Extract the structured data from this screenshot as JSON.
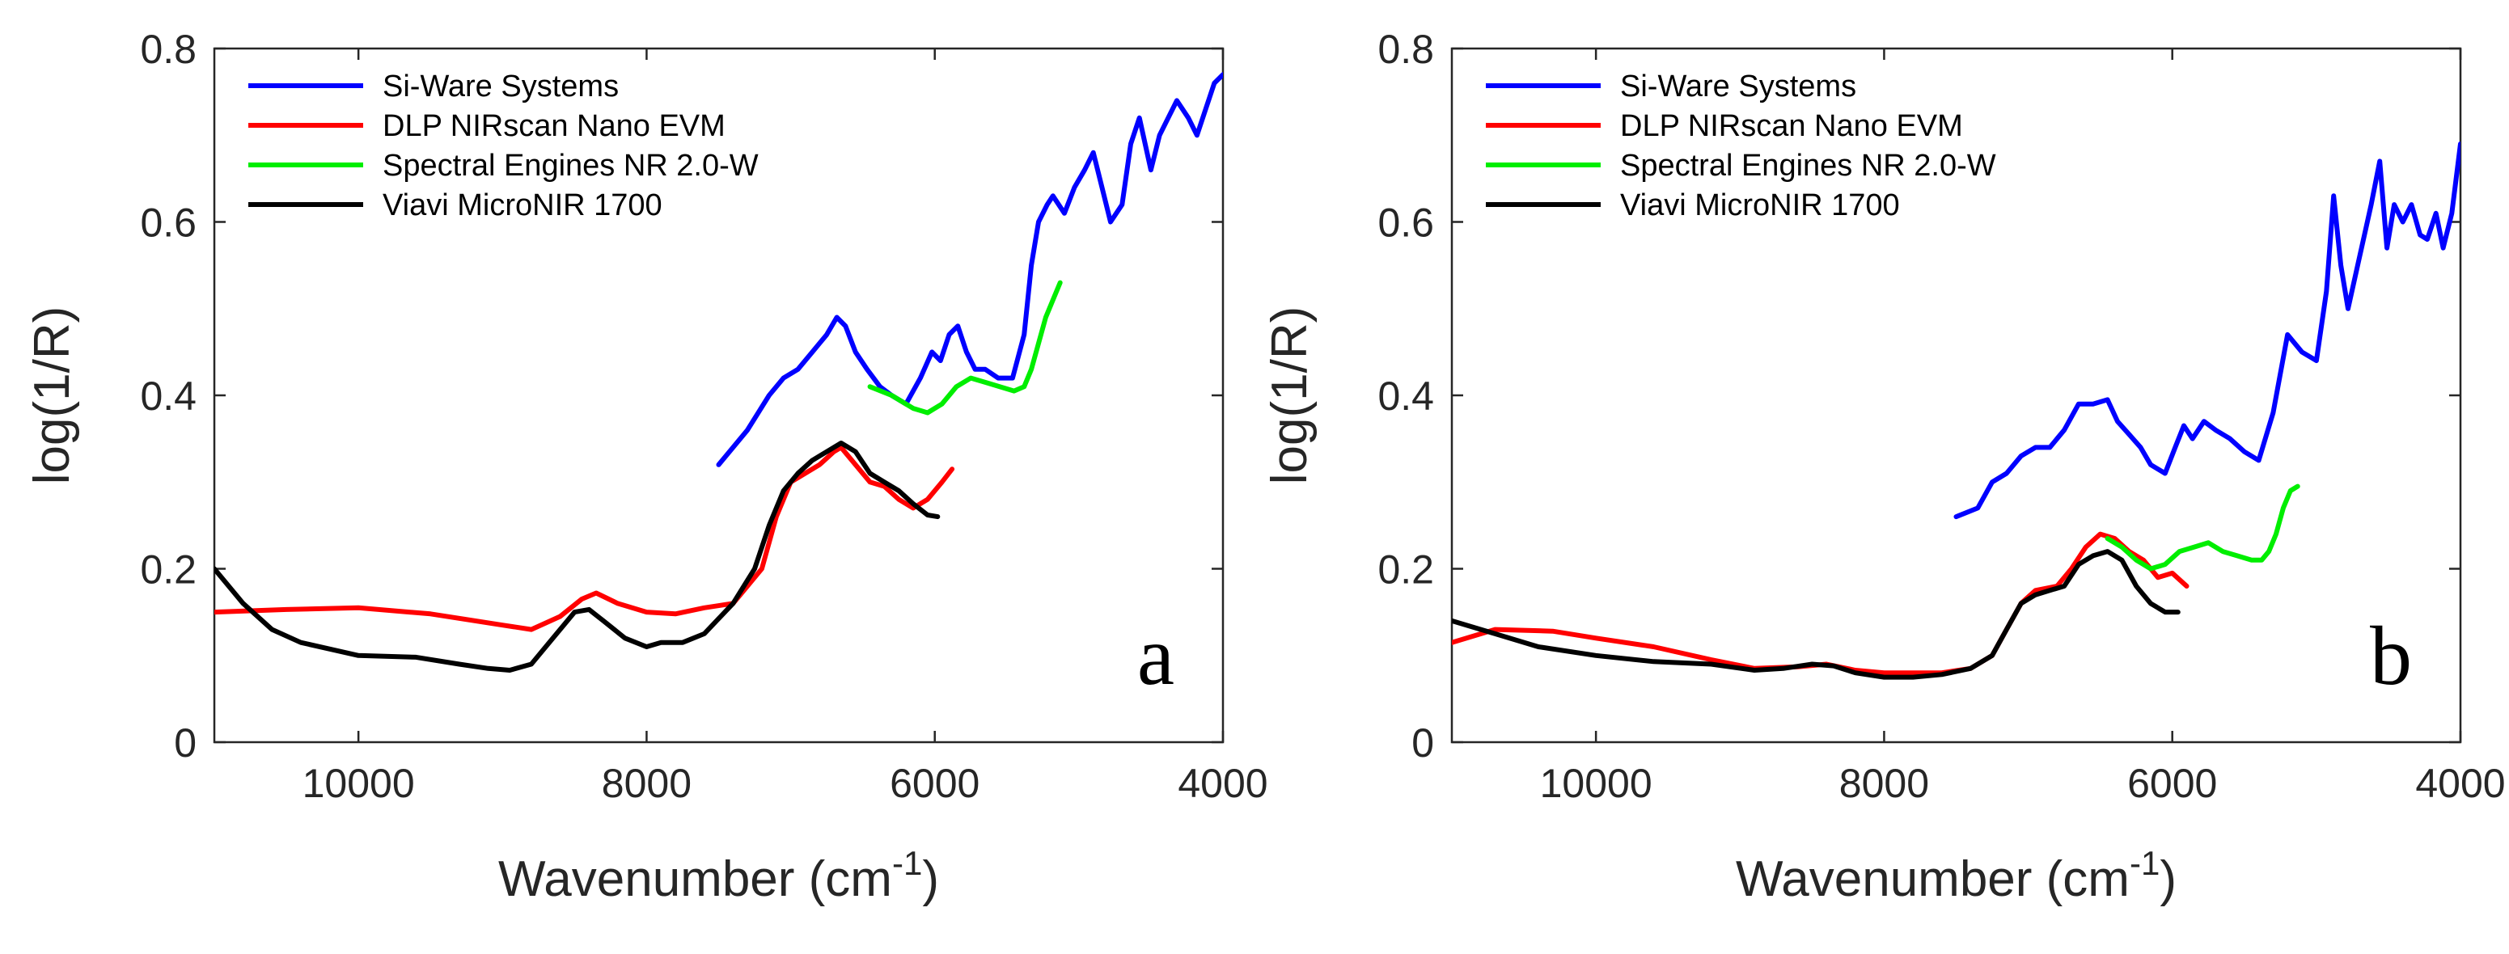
{
  "chart_data": [
    {
      "type": "line",
      "panel_label": "a",
      "xlabel": "Wavenumber (cm",
      "xlabel_sup": "-1",
      "xlabel_end": ")",
      "ylabel": "log(1/R)",
      "xlim": [
        11000,
        4000
      ],
      "ylim": [
        0,
        0.8
      ],
      "x_reversed": true,
      "xticks": [
        10000,
        8000,
        6000,
        4000
      ],
      "xtick_labels": [
        "10000",
        "8000",
        "6000",
        "4000"
      ],
      "yticks": [
        0,
        0.2,
        0.4,
        0.6,
        0.8
      ],
      "ytick_labels": [
        "0",
        "0.2",
        "0.4",
        "0.6",
        "0.8"
      ],
      "legend": {
        "placement": "top-left"
      },
      "series": [
        {
          "name": "Si-Ware Systems",
          "color": "#0000ff",
          "x": [
            7500,
            7300,
            7150,
            7050,
            6950,
            6850,
            6750,
            6680,
            6620,
            6550,
            6470,
            6380,
            6300,
            6200,
            6100,
            6020,
            5960,
            5900,
            5840,
            5780,
            5720,
            5650,
            5560,
            5460,
            5380,
            5330,
            5280,
            5220,
            5180,
            5100,
            5030,
            4960,
            4900,
            4840,
            4780,
            4700,
            4640,
            4580,
            4500,
            4440,
            4380,
            4320,
            4240,
            4180,
            4120,
            4060,
            4000
          ],
          "y": [
            0.32,
            0.36,
            0.4,
            0.42,
            0.43,
            0.45,
            0.47,
            0.49,
            0.48,
            0.45,
            0.43,
            0.41,
            0.4,
            0.39,
            0.42,
            0.45,
            0.44,
            0.47,
            0.48,
            0.45,
            0.43,
            0.43,
            0.42,
            0.42,
            0.47,
            0.55,
            0.6,
            0.62,
            0.63,
            0.61,
            0.64,
            0.66,
            0.68,
            0.64,
            0.6,
            0.62,
            0.69,
            0.72,
            0.66,
            0.7,
            0.72,
            0.74,
            0.72,
            0.7,
            0.73,
            0.76,
            0.77
          ]
        },
        {
          "name": "DLP NIRscan Nano EVM",
          "color": "#ff0000",
          "x": [
            11000,
            10500,
            10000,
            9500,
            9000,
            8800,
            8600,
            8450,
            8350,
            8200,
            8000,
            7800,
            7600,
            7400,
            7200,
            7100,
            7000,
            6900,
            6800,
            6700,
            6650,
            6550,
            6450,
            6350,
            6250,
            6150,
            6050,
            5950,
            5880
          ],
          "y": [
            0.15,
            0.153,
            0.155,
            0.148,
            0.135,
            0.13,
            0.145,
            0.165,
            0.172,
            0.16,
            0.15,
            0.148,
            0.155,
            0.16,
            0.2,
            0.26,
            0.3,
            0.31,
            0.32,
            0.335,
            0.34,
            0.32,
            0.3,
            0.295,
            0.28,
            0.27,
            0.28,
            0.3,
            0.315
          ]
        },
        {
          "name": "Spectral Engines NR 2.0-W",
          "color": "#00ee00",
          "x": [
            6450,
            6300,
            6150,
            6050,
            5950,
            5850,
            5750,
            5650,
            5550,
            5450,
            5380,
            5330,
            5280,
            5230,
            5180,
            5130
          ],
          "y": [
            0.41,
            0.4,
            0.385,
            0.38,
            0.39,
            0.41,
            0.42,
            0.415,
            0.41,
            0.405,
            0.41,
            0.43,
            0.46,
            0.49,
            0.51,
            0.53
          ]
        },
        {
          "name": "Viavi MicroNIR 1700",
          "color": "#000000",
          "x": [
            11000,
            10800,
            10600,
            10400,
            10000,
            9600,
            9300,
            9100,
            8950,
            8800,
            8650,
            8500,
            8400,
            8300,
            8150,
            8000,
            7900,
            7750,
            7600,
            7400,
            7250,
            7150,
            7050,
            6950,
            6850,
            6750,
            6650,
            6550,
            6450,
            6350,
            6250,
            6150,
            6050,
            5980
          ],
          "y": [
            0.2,
            0.16,
            0.13,
            0.115,
            0.1,
            0.098,
            0.09,
            0.085,
            0.083,
            0.09,
            0.12,
            0.15,
            0.153,
            0.14,
            0.12,
            0.11,
            0.115,
            0.115,
            0.125,
            0.16,
            0.2,
            0.25,
            0.29,
            0.31,
            0.325,
            0.335,
            0.345,
            0.335,
            0.31,
            0.3,
            0.29,
            0.275,
            0.262,
            0.26
          ]
        }
      ]
    },
    {
      "type": "line",
      "panel_label": "b",
      "xlabel": "Wavenumber (cm",
      "xlabel_sup": "-1",
      "xlabel_end": ")",
      "ylabel": "log(1/R)",
      "xlim": [
        11000,
        4000
      ],
      "ylim": [
        0,
        0.8
      ],
      "x_reversed": true,
      "xticks": [
        10000,
        8000,
        6000,
        4000
      ],
      "xtick_labels": [
        "10000",
        "8000",
        "6000",
        "4000"
      ],
      "yticks": [
        0,
        0.2,
        0.4,
        0.6,
        0.8
      ],
      "ytick_labels": [
        "0",
        "0.2",
        "0.4",
        "0.6",
        "0.8"
      ],
      "legend": {
        "placement": "top-left"
      },
      "series": [
        {
          "name": "Si-Ware Systems",
          "color": "#0000ff",
          "x": [
            7500,
            7350,
            7250,
            7150,
            7050,
            6950,
            6850,
            6750,
            6650,
            6550,
            6450,
            6380,
            6300,
            6220,
            6150,
            6050,
            5980,
            5920,
            5860,
            5780,
            5700,
            5600,
            5500,
            5400,
            5300,
            5200,
            5100,
            5000,
            4930,
            4880,
            4830,
            4780,
            4700,
            4620,
            4560,
            4510,
            4460,
            4400,
            4340,
            4280,
            4230,
            4170,
            4120,
            4060,
            4000
          ],
          "y": [
            0.26,
            0.27,
            0.3,
            0.31,
            0.33,
            0.34,
            0.34,
            0.36,
            0.39,
            0.39,
            0.395,
            0.37,
            0.355,
            0.34,
            0.32,
            0.31,
            0.34,
            0.365,
            0.35,
            0.37,
            0.36,
            0.35,
            0.335,
            0.325,
            0.38,
            0.47,
            0.45,
            0.44,
            0.52,
            0.63,
            0.55,
            0.5,
            0.56,
            0.62,
            0.67,
            0.57,
            0.62,
            0.6,
            0.62,
            0.585,
            0.58,
            0.61,
            0.57,
            0.61,
            0.69
          ]
        },
        {
          "name": "DLP NIRscan Nano EVM",
          "color": "#ff0000",
          "x": [
            11000,
            10700,
            10300,
            10000,
            9600,
            9200,
            8900,
            8600,
            8400,
            8200,
            8000,
            7800,
            7600,
            7400,
            7250,
            7150,
            7050,
            6950,
            6800,
            6700,
            6600,
            6500,
            6400,
            6300,
            6200,
            6100,
            6000,
            5900
          ],
          "y": [
            0.115,
            0.13,
            0.128,
            0.12,
            0.11,
            0.095,
            0.085,
            0.087,
            0.09,
            0.083,
            0.08,
            0.08,
            0.08,
            0.085,
            0.1,
            0.13,
            0.16,
            0.175,
            0.18,
            0.2,
            0.225,
            0.24,
            0.235,
            0.22,
            0.21,
            0.19,
            0.195,
            0.18
          ]
        },
        {
          "name": "Spectral Engines NR 2.0-W",
          "color": "#00ee00",
          "x": [
            6450,
            6350,
            6250,
            6150,
            6050,
            5950,
            5850,
            5750,
            5650,
            5550,
            5450,
            5380,
            5330,
            5280,
            5230,
            5180,
            5130
          ],
          "y": [
            0.235,
            0.225,
            0.21,
            0.2,
            0.205,
            0.22,
            0.225,
            0.23,
            0.22,
            0.215,
            0.21,
            0.21,
            0.22,
            0.24,
            0.27,
            0.29,
            0.295
          ]
        },
        {
          "name": "Viavi MicroNIR 1700",
          "color": "#000000",
          "x": [
            11000,
            10700,
            10400,
            10000,
            9600,
            9200,
            8900,
            8700,
            8500,
            8350,
            8200,
            8000,
            7800,
            7600,
            7400,
            7250,
            7150,
            7050,
            6950,
            6850,
            6750,
            6650,
            6550,
            6450,
            6350,
            6250,
            6150,
            6050,
            5960
          ],
          "y": [
            0.14,
            0.125,
            0.11,
            0.1,
            0.093,
            0.09,
            0.083,
            0.085,
            0.09,
            0.088,
            0.08,
            0.075,
            0.075,
            0.078,
            0.085,
            0.1,
            0.13,
            0.16,
            0.17,
            0.175,
            0.18,
            0.205,
            0.215,
            0.22,
            0.21,
            0.18,
            0.16,
            0.15,
            0.15
          ]
        }
      ]
    }
  ]
}
